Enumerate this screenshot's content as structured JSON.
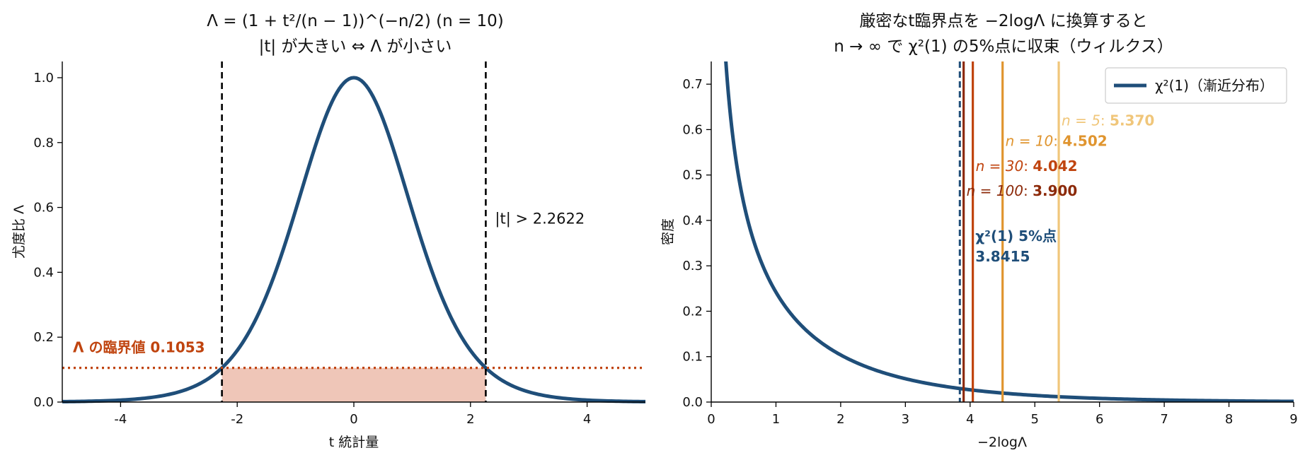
{
  "chart_data": [
    {
      "type": "line",
      "title": "Λ = (1 + t²/(n − 1))^(−n/2)  (n = 10)",
      "subtitle": "|t| が大きい ⇔ Λ が小さい",
      "xlabel": "t 統計量",
      "ylabel": "尤度比 Λ",
      "xlim": [
        -5,
        5
      ],
      "ylim": [
        0,
        1.05
      ],
      "xticks": [
        -4,
        -2,
        0,
        2,
        4
      ],
      "yticks": [
        0.0,
        0.2,
        0.4,
        0.6,
        0.8,
        1.0
      ],
      "grid": false,
      "n": 10,
      "series": [
        {
          "color": "#1f4e79",
          "x": [
            -5.0,
            -4.5,
            -4.0,
            -3.5,
            -3.0,
            -2.5,
            -2.2622,
            -2.0,
            -1.5,
            -1.0,
            -0.5,
            0.0,
            0.5,
            1.0,
            1.5,
            2.0,
            2.2622,
            2.5,
            3.0,
            3.5,
            4.0,
            4.5,
            5.0
          ],
          "y": [
            0.0023,
            0.0041,
            0.0076,
            0.0148,
            0.0311,
            0.0692,
            0.1053,
            0.1609,
            0.3397,
            0.584,
            0.8706,
            1.0,
            0.8706,
            0.584,
            0.3397,
            0.1609,
            0.1053,
            0.0692,
            0.0311,
            0.0148,
            0.0076,
            0.0041,
            0.0023
          ]
        }
      ],
      "critical_t": 2.2622,
      "critical_lambda": 0.1053,
      "critical_t_label": "|t| > 2.2622",
      "critical_lambda_label": "Λ の臨界値 0.1053",
      "reference_color": "#000000",
      "threshold_color": "#c0440f",
      "fill_color": "#efc6b8"
    },
    {
      "type": "line",
      "title": "厳密なt臨界点を −2logΛ に換算すると",
      "subtitle": "n → ∞ で χ²(1) の5%点に収束（ウィルクス）",
      "xlabel": "−2logΛ",
      "ylabel": "密度",
      "xlim": [
        0,
        9
      ],
      "ylim": [
        0,
        0.75
      ],
      "xticks": [
        0,
        1,
        2,
        3,
        4,
        5,
        6,
        7,
        8,
        9
      ],
      "yticks": [
        0.0,
        0.1,
        0.2,
        0.3,
        0.4,
        0.5,
        0.6,
        0.7
      ],
      "grid": false,
      "legend": "top-right",
      "series": [
        {
          "name": "χ²(1)（漸近分布）",
          "color": "#1f4e79",
          "x": [
            0.2,
            0.25,
            0.3,
            0.4,
            0.5,
            0.6,
            0.8,
            1.0,
            1.25,
            1.5,
            2.0,
            2.5,
            3.0,
            3.5,
            4.0,
            4.5,
            5.0,
            6.0,
            7.0,
            8.0,
            9.0
          ],
          "y": [
            0.807,
            0.7041,
            0.6343,
            0.5211,
            0.4394,
            0.3788,
            0.2988,
            0.242,
            0.1915,
            0.1542,
            0.1038,
            0.0716,
            0.0514,
            0.037,
            0.027,
            0.0194,
            0.0146,
            0.0082,
            0.0047,
            0.0026,
            0.0015
          ]
        }
      ],
      "chi2_critical": 3.8415,
      "chi2_label_line1": "χ²(1) 5%点",
      "chi2_label_line2": "3.8415",
      "exact_points": [
        {
          "n_label": "n = 5",
          "sep": ": ",
          "value": 5.37,
          "value_text": "5.370",
          "color": "#f0c67a",
          "label_y": 0.62
        },
        {
          "n_label": "n = 10",
          "sep": ": ",
          "value": 4.502,
          "value_text": "4.502",
          "color": "#e0952f",
          "label_y": 0.575
        },
        {
          "n_label": "n = 30",
          "sep": ": ",
          "value": 4.042,
          "value_text": "4.042",
          "color": "#c0440f",
          "label_y": 0.52
        },
        {
          "n_label": "n = 100",
          "sep": ": ",
          "value": 3.9,
          "value_text": "3.900",
          "color": "#8c2a0a",
          "label_y": 0.465
        }
      ]
    }
  ]
}
